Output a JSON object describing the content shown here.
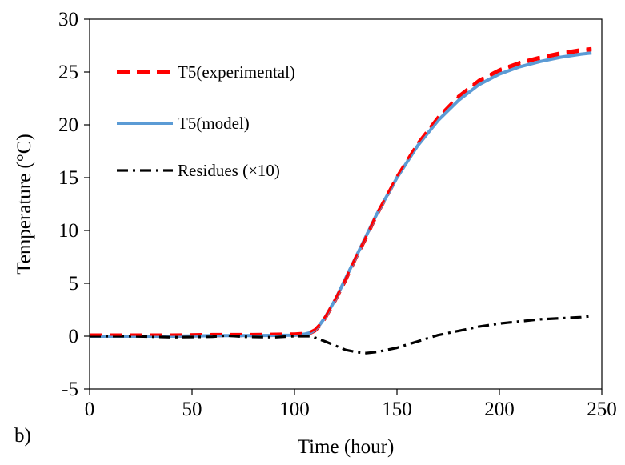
{
  "chart_data": {
    "type": "line",
    "panel_label": "b)",
    "xlabel": "Time (hour)",
    "ylabel": "Temperature (°C)",
    "xlim": [
      0,
      250
    ],
    "ylim": [
      -5,
      30
    ],
    "x_ticks": [
      0,
      50,
      100,
      150,
      200,
      250
    ],
    "y_ticks": [
      -5,
      0,
      5,
      10,
      15,
      20,
      25,
      30
    ],
    "grid": false,
    "legend_position": "top-left",
    "series": [
      {
        "name": "T5(experimental)",
        "color": "#ff0000",
        "style": "dashed",
        "x": [
          0,
          20,
          40,
          60,
          80,
          100,
          105,
          108,
          110,
          112,
          115,
          120,
          125,
          130,
          135,
          140,
          150,
          160,
          170,
          180,
          190,
          200,
          210,
          220,
          230,
          240,
          245
        ],
        "y": [
          0,
          0,
          0,
          0.05,
          0.05,
          0.1,
          0.15,
          0.3,
          0.5,
          0.9,
          1.7,
          3.4,
          5.3,
          7.4,
          9.3,
          11.4,
          15.0,
          18.1,
          20.6,
          22.6,
          24.1,
          25.1,
          25.8,
          26.3,
          26.7,
          27.0,
          27.1
        ]
      },
      {
        "name": "T5(model)",
        "color": "#5b9bd5",
        "style": "solid",
        "x": [
          0,
          20,
          40,
          60,
          80,
          100,
          105,
          108,
          110,
          112,
          115,
          120,
          125,
          130,
          135,
          140,
          150,
          160,
          170,
          180,
          190,
          200,
          210,
          220,
          230,
          240,
          245
        ],
        "y": [
          0,
          0,
          0,
          0.05,
          0.05,
          0.1,
          0.2,
          0.35,
          0.6,
          1.0,
          1.8,
          3.5,
          5.5,
          7.5,
          9.5,
          11.5,
          15.0,
          18.0,
          20.4,
          22.3,
          23.8,
          24.8,
          25.5,
          26.0,
          26.4,
          26.7,
          26.8
        ]
      },
      {
        "name": "Residues (×10)",
        "color": "#000000",
        "style": "dashdot",
        "x": [
          0,
          20,
          40,
          60,
          67,
          75,
          90,
          100,
          108,
          115,
          120,
          125,
          130,
          135,
          140,
          150,
          160,
          170,
          180,
          190,
          200,
          210,
          220,
          230,
          240,
          245
        ],
        "y": [
          0,
          0,
          -0.1,
          -0.05,
          0.05,
          -0.05,
          -0.1,
          0,
          0,
          -0.5,
          -0.9,
          -1.3,
          -1.5,
          -1.6,
          -1.5,
          -1.1,
          -0.5,
          0.1,
          0.5,
          0.9,
          1.2,
          1.4,
          1.6,
          1.7,
          1.8,
          1.9
        ]
      }
    ]
  }
}
